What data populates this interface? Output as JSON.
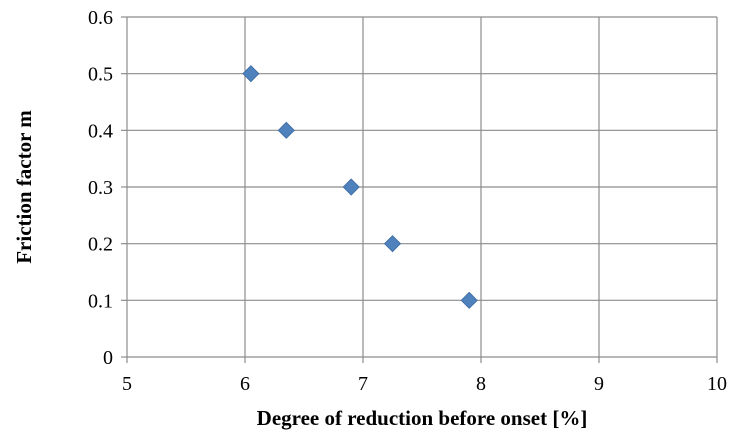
{
  "chart_data": {
    "type": "scatter",
    "title": "",
    "xlabel": "Degree of reduction before onset [%]",
    "ylabel": "Friction factor m",
    "xlim": [
      5,
      10
    ],
    "ylim": [
      0,
      0.6
    ],
    "x_ticks": [
      "5",
      "6",
      "7",
      "8",
      "9",
      "10"
    ],
    "y_ticks": [
      "0",
      "0.1",
      "0.2",
      "0.3",
      "0.4",
      "0.5",
      "0.6"
    ],
    "grid": true,
    "legend": "none",
    "marker": "diamond",
    "color": "#4f81bd",
    "points": [
      {
        "x": 6.05,
        "y": 0.5
      },
      {
        "x": 6.35,
        "y": 0.4
      },
      {
        "x": 6.9,
        "y": 0.3
      },
      {
        "x": 7.25,
        "y": 0.2
      },
      {
        "x": 7.9,
        "y": 0.1
      }
    ]
  }
}
